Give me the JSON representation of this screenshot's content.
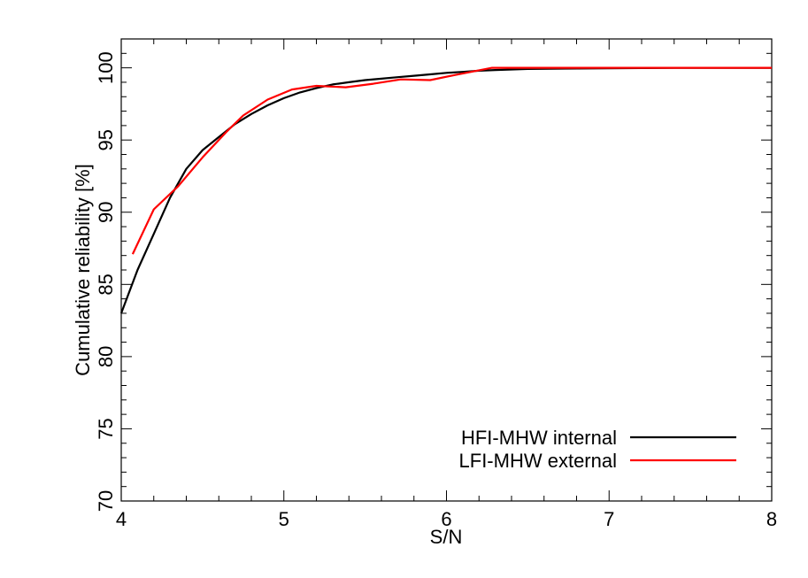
{
  "chart_data": {
    "type": "line",
    "title": "",
    "xlabel": "S/N",
    "ylabel": "Cumulative reliability [%]",
    "xlim": [
      4,
      8
    ],
    "ylim": [
      70,
      102
    ],
    "xticks": [
      4,
      5,
      6,
      7,
      8
    ],
    "yticks": [
      70,
      75,
      80,
      85,
      90,
      95,
      100
    ],
    "grid": false,
    "legend_position": "bottom-right",
    "series": [
      {
        "name": "HFI-MHW internal",
        "color": "#000000",
        "x": [
          4.0,
          4.1,
          4.2,
          4.3,
          4.4,
          4.5,
          4.6,
          4.7,
          4.8,
          4.9,
          5.0,
          5.1,
          5.2,
          5.3,
          5.4,
          5.5,
          5.6,
          5.7,
          5.8,
          5.9,
          6.0,
          6.1,
          6.2,
          6.3,
          6.5,
          7.0,
          7.5,
          8.0
        ],
        "y": [
          83.0,
          86.0,
          88.5,
          91.0,
          93.0,
          94.3,
          95.2,
          96.1,
          96.8,
          97.4,
          97.9,
          98.3,
          98.6,
          98.85,
          99.0,
          99.15,
          99.25,
          99.35,
          99.45,
          99.55,
          99.65,
          99.72,
          99.8,
          99.85,
          99.92,
          99.97,
          100.0,
          100.0
        ]
      },
      {
        "name": "LFI-MHW external",
        "color": "#ff0000",
        "x": [
          4.07,
          4.2,
          4.35,
          4.5,
          4.65,
          4.75,
          4.9,
          5.05,
          5.2,
          5.38,
          5.55,
          5.72,
          5.9,
          6.05,
          6.28,
          6.45,
          7.0,
          7.25,
          8.0
        ],
        "y": [
          87.1,
          90.2,
          91.8,
          93.8,
          95.6,
          96.7,
          97.8,
          98.5,
          98.75,
          98.65,
          98.9,
          99.2,
          99.15,
          99.5,
          100.0,
          100.0,
          100.0,
          100.0,
          100.0
        ]
      }
    ]
  }
}
